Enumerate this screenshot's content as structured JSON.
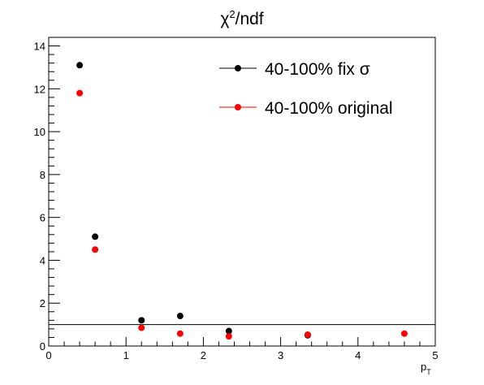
{
  "chart_data": {
    "type": "scatter",
    "title": "χ²/ndf",
    "title_base": "χ",
    "title_sup": "2",
    "title_rest": "/ndf",
    "xlabel": "p",
    "xlabel_sub": "T",
    "ylabel": "",
    "xlim": [
      0,
      5
    ],
    "ylim": [
      0,
      14.4
    ],
    "x_ticks": [
      0,
      1,
      2,
      3,
      4,
      5
    ],
    "x_tick_labels": [
      "0",
      "1",
      "2",
      "3",
      "4",
      "5"
    ],
    "y_ticks": [
      0,
      2,
      4,
      6,
      8,
      10,
      12,
      14
    ],
    "y_tick_labels": [
      "0",
      "2",
      "4",
      "6",
      "8",
      "10",
      "12",
      "14"
    ],
    "grid": false,
    "legend_position": "top-right",
    "reference_line": 1.0,
    "series": [
      {
        "name": "40-100% fix σ",
        "color": "#000000",
        "x": [
          0.4,
          0.6,
          1.2,
          1.7,
          2.33,
          3.35
        ],
        "y": [
          13.1,
          5.1,
          1.2,
          1.4,
          0.7,
          0.5
        ]
      },
      {
        "name": "40-100% original",
        "color": "#ff0000",
        "x": [
          0.4,
          0.6,
          1.2,
          1.7,
          2.33,
          3.35,
          4.6
        ],
        "y": [
          11.8,
          4.5,
          0.85,
          0.58,
          0.45,
          0.53,
          0.58
        ]
      }
    ]
  }
}
